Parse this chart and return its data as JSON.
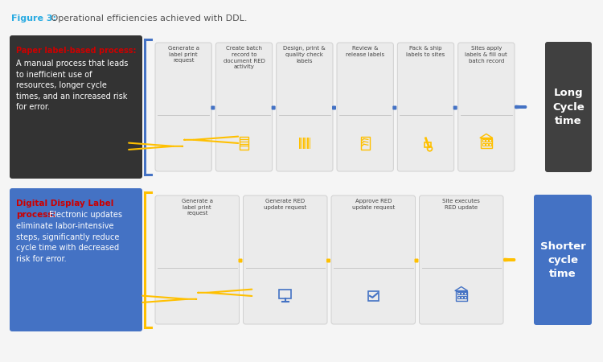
{
  "title_fig3": "Figure 3:",
  "title_rest": " Operational efficiencies achieved with DDL.",
  "title_color_fig3": "#29ABE2",
  "title_color_rest": "#555555",
  "bg_color": "#f5f5f5",
  "top_box_bg": "#333333",
  "top_box_text_bold": "Paper label-based process:",
  "top_box_text_bold_color": "#cc0000",
  "top_box_text_body": "A manual process that leads\nto inefficient use of\nresources, longer cycle\ntimes, and an increased risk\nfor error.",
  "top_box_text_color": "#ffffff",
  "bottom_box_bg": "#4472C4",
  "bottom_box_text_bold1": "Digital Display Label",
  "bottom_box_text_bold2": "process:",
  "bottom_box_text_bold_color": "#cc0000",
  "bottom_box_text_body": " Electronic updates\neliminate labor-intensive\nsteps, significantly reduce\ncycle time with decreased\nrisk for error.",
  "bottom_box_text_color": "#ffffff",
  "top_bracket_color": "#4472C4",
  "bottom_bracket_color": "#FFC000",
  "top_steps": [
    "Generate a\nlabel print\nrequest",
    "Create batch\nrecord to\ndocument RED\nactivity",
    "Design, print &\nquality check\nlabels",
    "Review &\nrelease labels",
    "Pack & ship\nlabels to sites",
    "Sites apply\nlabels & fill out\nbatch record"
  ],
  "top_icon_color": "#FFC000",
  "top_connector_color": "#4472C4",
  "top_arrow_color": "#4472C4",
  "top_result_bg": "#404040",
  "top_result_text": "Long\nCycle\ntime",
  "top_result_text_color": "#ffffff",
  "bottom_steps": [
    "Generate a\nlabel print\nrequest",
    "Generate RED\nupdate request",
    "Approve RED\nupdate request",
    "Site executes\nRED update"
  ],
  "bottom_icon_color_0": "#FFC000",
  "bottom_icon_color_rest": "#4472C4",
  "bottom_connector_color": "#FFC000",
  "bottom_arrow_color": "#FFC000",
  "bottom_result_bg": "#4472C4",
  "bottom_result_text": "Shorter\ncycle\ntime",
  "bottom_result_text_color": "#ffffff",
  "step_box_bg": "#ebebeb",
  "step_box_edge": "#d0d0d0"
}
